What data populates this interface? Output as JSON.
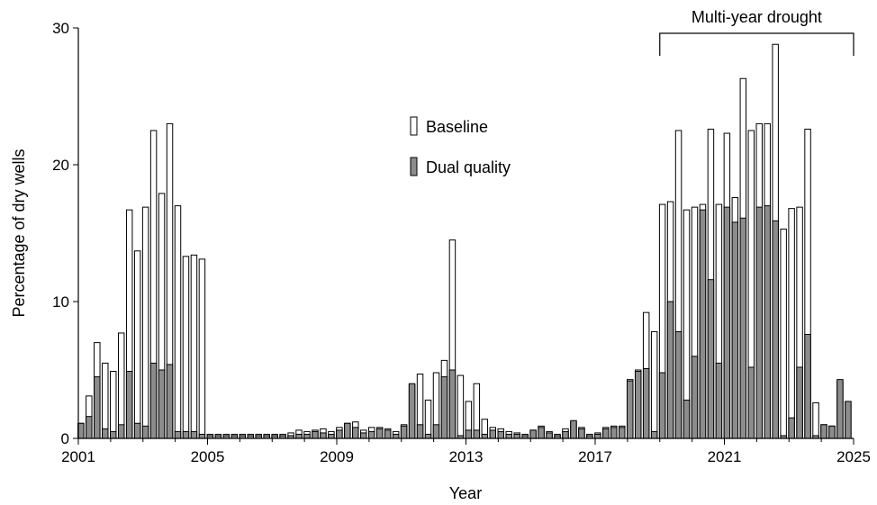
{
  "chart_data": {
    "type": "bar",
    "xlabel": "Year",
    "ylabel": "Percentage of dry wells",
    "ylim": [
      0,
      30
    ],
    "yticks": [
      0,
      10,
      20,
      30
    ],
    "xlim": [
      2001,
      2025
    ],
    "xticks": [
      2001,
      2005,
      2009,
      2013,
      2017,
      2021,
      2025
    ],
    "x_unit": "year",
    "legend_position": "center",
    "grid": false,
    "annotation": {
      "label": "Multi-year drought",
      "x_start": 2019,
      "x_end": 2025
    },
    "x": [
      2001.08,
      2001.33,
      2001.58,
      2001.83,
      2002.08,
      2002.33,
      2002.58,
      2002.83,
      2003.08,
      2003.33,
      2003.58,
      2003.83,
      2004.08,
      2004.33,
      2004.58,
      2004.83,
      2005.08,
      2005.33,
      2005.58,
      2005.83,
      2006.08,
      2006.33,
      2006.58,
      2006.83,
      2007.08,
      2007.33,
      2007.58,
      2007.83,
      2008.08,
      2008.33,
      2008.58,
      2008.83,
      2009.08,
      2009.33,
      2009.58,
      2009.83,
      2010.08,
      2010.33,
      2010.58,
      2010.83,
      2011.08,
      2011.33,
      2011.58,
      2011.83,
      2012.08,
      2012.33,
      2012.58,
      2012.83,
      2013.08,
      2013.33,
      2013.58,
      2013.83,
      2014.08,
      2014.33,
      2014.58,
      2014.83,
      2015.08,
      2015.33,
      2015.58,
      2015.83,
      2016.08,
      2016.33,
      2016.58,
      2016.83,
      2017.08,
      2017.33,
      2017.58,
      2017.83,
      2018.08,
      2018.33,
      2018.58,
      2018.83,
      2019.08,
      2019.33,
      2019.58,
      2019.83,
      2020.08,
      2020.33,
      2020.58,
      2020.83,
      2021.08,
      2021.33,
      2021.58,
      2021.83,
      2022.08,
      2022.33,
      2022.58,
      2022.83,
      2023.08,
      2023.33,
      2023.58,
      2023.83,
      2024.08,
      2024.33,
      2024.58,
      2024.83
    ],
    "series": [
      {
        "name": "Baseline",
        "color": "#ffffff",
        "values": [
          1.1,
          3.1,
          7.0,
          5.5,
          4.9,
          7.7,
          16.7,
          13.7,
          16.9,
          22.5,
          17.9,
          23.0,
          17.0,
          13.3,
          13.4,
          13.1,
          0.3,
          0.3,
          0.3,
          0.3,
          0.3,
          0.3,
          0.3,
          0.3,
          0.3,
          0.3,
          0.4,
          0.6,
          0.5,
          0.6,
          0.7,
          0.5,
          0.8,
          1.1,
          1.2,
          0.6,
          0.8,
          0.8,
          0.7,
          0.5,
          1.0,
          3.9,
          4.7,
          2.8,
          4.8,
          5.7,
          14.5,
          4.6,
          2.7,
          4.0,
          1.4,
          0.8,
          0.7,
          0.5,
          0.4,
          0.3,
          0.6,
          0.9,
          0.5,
          0.3,
          0.7,
          1.2,
          0.8,
          0.3,
          0.4,
          0.8,
          0.9,
          0.9,
          4.3,
          5.0,
          9.2,
          7.8,
          17.1,
          17.3,
          22.5,
          16.7,
          16.9,
          17.1,
          22.6,
          17.1,
          22.3,
          17.6,
          26.3,
          22.5,
          23.0,
          23.0,
          28.8,
          15.3,
          16.8,
          16.9,
          22.6,
          2.6,
          1.0,
          0.9,
          4.2,
          2.7
        ]
      },
      {
        "name": "Dual quality",
        "color": "#8c8c8c",
        "values": [
          1.1,
          1.6,
          4.5,
          0.7,
          0.5,
          1.0,
          4.9,
          1.1,
          0.9,
          5.5,
          5.0,
          5.4,
          0.5,
          0.5,
          0.5,
          0.3,
          0.2,
          0.2,
          0.2,
          0.2,
          0.2,
          0.2,
          0.2,
          0.2,
          0.2,
          0.2,
          0.2,
          0.3,
          0.3,
          0.5,
          0.4,
          0.3,
          0.6,
          1.1,
          0.8,
          0.4,
          0.5,
          0.7,
          0.6,
          0.3,
          0.9,
          4.0,
          1.0,
          0.3,
          1.0,
          4.5,
          5.0,
          0.2,
          0.6,
          0.6,
          0.3,
          0.6,
          0.5,
          0.3,
          0.3,
          0.2,
          0.6,
          0.8,
          0.4,
          0.2,
          0.5,
          1.3,
          0.7,
          0.2,
          0.3,
          0.7,
          0.8,
          0.8,
          4.2,
          4.9,
          5.1,
          0.5,
          4.8,
          10.0,
          7.8,
          2.8,
          6.0,
          16.7,
          11.6,
          5.5,
          16.9,
          15.8,
          16.1,
          5.2,
          16.9,
          17.0,
          15.9,
          0.2,
          1.5,
          5.2,
          7.6,
          0.2,
          1.0,
          0.9,
          4.3,
          2.7
        ]
      }
    ]
  }
}
